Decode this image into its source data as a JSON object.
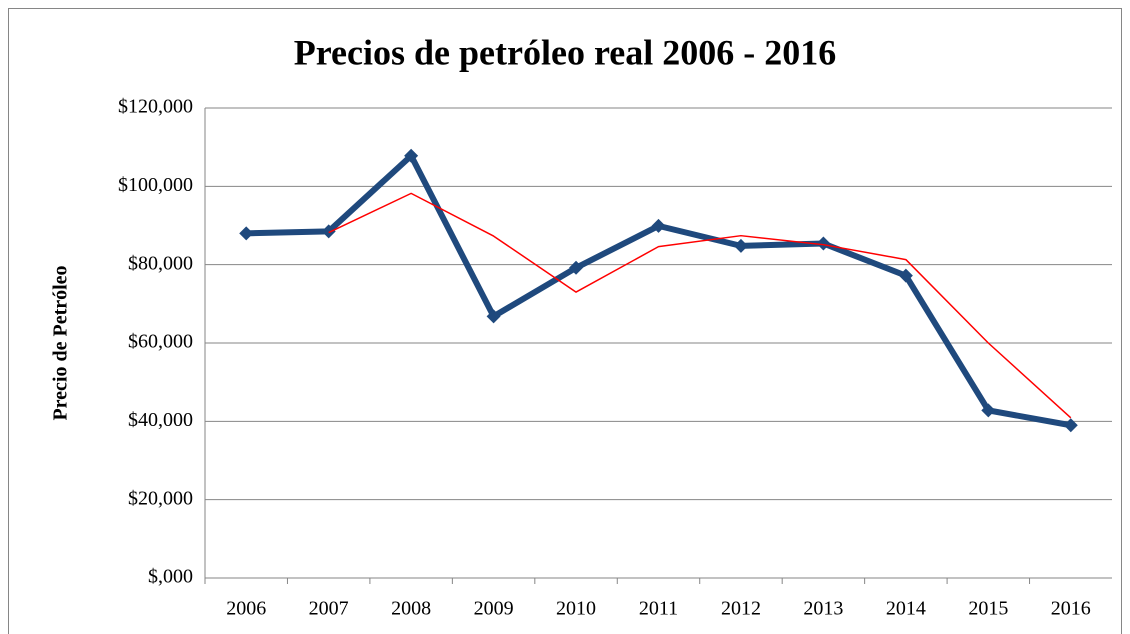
{
  "chart_data": {
    "type": "line",
    "title": "Precios de petróleo real 2006 - 2016",
    "y_label": "Precio de Petróleo",
    "categories": [
      "2006",
      "2007",
      "2008",
      "2009",
      "2010",
      "2011",
      "2012",
      "2013",
      "2014",
      "2015",
      "2016"
    ],
    "series": [
      {
        "color": "#1f497d",
        "values": [
          88,
          88.5,
          107.8,
          66.8,
          79.2,
          89.9,
          84.8,
          85.4,
          77.2,
          42.8,
          39.0
        ]
      },
      {
        "color": "#ff0000",
        "values": [
          null,
          88.2,
          98.2,
          87.3,
          73.0,
          84.6,
          87.4,
          85.1,
          81.3,
          60.0,
          40.9
        ]
      }
    ],
    "ylim": [
      0,
      120
    ],
    "yticks": [
      {
        "value": 0,
        "label": "$,000"
      },
      {
        "value": 20,
        "label": "$20,000"
      },
      {
        "value": 40,
        "label": "$40,000"
      },
      {
        "value": 60,
        "label": "$60,000"
      },
      {
        "value": 80,
        "label": "$80,000"
      },
      {
        "value": 100,
        "label": "$100,000"
      },
      {
        "value": 120,
        "label": "$120,000"
      }
    ],
    "grid": true
  }
}
